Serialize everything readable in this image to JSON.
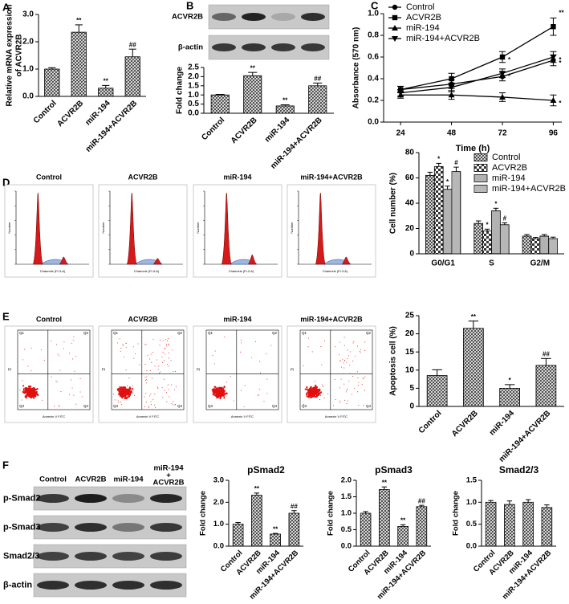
{
  "panel_labels": [
    "A",
    "B",
    "C",
    "D",
    "E",
    "F"
  ],
  "blot_B": {
    "rows": [
      "ACVR2B",
      "β-actin"
    ]
  },
  "cycle_images": {
    "titles": [
      "Control",
      "ACVR2B",
      "miR-194",
      "miR-194+ACVR2B"
    ],
    "x_label": "Channels (FL3-A)",
    "y_label": "Number"
  },
  "apoptosis_images": {
    "titles": [
      "Control",
      "ACVR2B",
      "miR-194",
      "miR-194+ACVR2B"
    ],
    "x_label": "Annexin V FITC",
    "y_label": "PI",
    "quadrants": [
      "Q1",
      "Q2",
      "Q3",
      "Q4"
    ]
  },
  "blot_F": {
    "lanes": [
      "Control",
      "ACVR2B",
      "miR-194",
      [
        "miR-194",
        "+",
        "ACVR2B"
      ]
    ],
    "rows": [
      "p-Smad2",
      "p-Smad3",
      "Smad2/3",
      "β-actin"
    ]
  },
  "chart_data": [
    {
      "type": "bar",
      "y_label": [
        "Relative mRNA expression",
        "of ACVR2B"
      ],
      "categories": [
        "Control",
        "ACVR2B",
        "miR-194",
        "miR-194+ACVR2B"
      ],
      "values": [
        1.0,
        2.35,
        0.3,
        1.45
      ],
      "errors": [
        0.05,
        0.27,
        0.1,
        0.28
      ],
      "annotations": [
        null,
        "**",
        "**",
        "##"
      ],
      "color": "#333333",
      "pattern": "crosshatch",
      "ylim": [
        0,
        3
      ],
      "yticks": [
        {
          "value": 0,
          "label": "0.0"
        },
        {
          "value": 1,
          "label": "1.0"
        },
        {
          "value": 2,
          "label": "2.0"
        },
        {
          "value": 3,
          "label": "3.0"
        }
      ]
    },
    {
      "type": "bar",
      "y_label": "Fold change",
      "categories": [
        "Control",
        "ACVR2B",
        "miR-194",
        "miR-194+ACVR2B"
      ],
      "values": [
        1.0,
        2.05,
        0.4,
        1.5
      ],
      "errors": [
        0.03,
        0.18,
        0.06,
        0.15
      ],
      "annotations": [
        null,
        "**",
        "**",
        "##"
      ],
      "color": "#333333",
      "pattern": "crosshatch",
      "ylim": [
        0,
        2.5
      ],
      "yticks": [
        {
          "value": 0,
          "label": "0.0"
        },
        {
          "value": 0.5,
          "label": "0.5"
        },
        {
          "value": 1,
          "label": "1.0"
        },
        {
          "value": 1.5,
          "label": "1.5"
        },
        {
          "value": 2,
          "label": "2.0"
        },
        {
          "value": 2.5,
          "label": "2.5"
        }
      ]
    },
    {
      "type": "line",
      "x_label": "Time (h)",
      "y_label": "Absorbance (570 nm)",
      "x": [
        24,
        48,
        72,
        96
      ],
      "xlim": [
        16,
        100
      ],
      "xticks": [
        24,
        48,
        72,
        96
      ],
      "ylim": [
        0,
        1
      ],
      "yticks": [
        {
          "value": 0,
          "label": "0.0"
        },
        {
          "value": 0.2,
          "label": "0.2"
        },
        {
          "value": 0.4,
          "label": "0.4"
        },
        {
          "value": 0.6,
          "label": "0.6"
        },
        {
          "value": 0.8,
          "label": "0.8"
        },
        {
          "value": 1,
          "label": "1.0"
        }
      ],
      "legend": "upper left",
      "series": [
        {
          "name": "Control",
          "color": "#000000",
          "marker": "circle",
          "values": [
            0.3,
            0.35,
            0.42,
            0.57
          ],
          "errors": [
            0.03,
            0.04,
            0.04,
            0.05
          ],
          "annotations": [
            null,
            null,
            null,
            "*"
          ]
        },
        {
          "name": "ACVR2B",
          "color": "#000000",
          "marker": "square",
          "values": [
            0.3,
            0.4,
            0.6,
            0.88
          ],
          "errors": [
            0.03,
            0.05,
            0.05,
            0.08
          ],
          "annotations": [
            null,
            null,
            "*",
            "**"
          ]
        },
        {
          "name": "miR-194",
          "color": "#000000",
          "marker": "triangle-up",
          "values": [
            0.25,
            0.25,
            0.23,
            0.2
          ],
          "errors": [
            0.03,
            0.04,
            0.04,
            0.05
          ],
          "annotations": [
            null,
            null,
            null,
            "*"
          ]
        },
        {
          "name": "miR-194+ACVR2B",
          "color": "#000000",
          "marker": "triangle-down",
          "values": [
            0.27,
            0.32,
            0.45,
            0.6
          ],
          "errors": [
            0.03,
            0.04,
            0.04,
            0.05
          ],
          "annotations": [
            null,
            null,
            "*",
            "*"
          ]
        }
      ]
    },
    {
      "type": "grouped_bar",
      "y_label": "Cell number (%)",
      "categories": [
        "G0/G1",
        "S",
        "G2/M"
      ],
      "legend": "upper right",
      "ylim": [
        0,
        80
      ],
      "yticks": [
        0,
        20,
        40,
        60,
        80
      ],
      "series": [
        {
          "name": "Control",
          "color": "#333333",
          "pattern": "crosshatch",
          "values": [
            62,
            24,
            14
          ],
          "errors": [
            2.5,
            2,
            1.2
          ],
          "annotations": [
            null,
            null,
            null
          ]
        },
        {
          "name": "ACVR2B",
          "color": "#333333",
          "pattern": "checker",
          "values": [
            69,
            18,
            12
          ],
          "errors": [
            2.5,
            1.5,
            1
          ],
          "annotations": [
            "*",
            "*",
            null
          ]
        },
        {
          "name": "miR-194",
          "color": "#333333",
          "pattern": "horizontal",
          "values": [
            51,
            34,
            14
          ],
          "errors": [
            2.5,
            2,
            1.2
          ],
          "annotations": [
            "*",
            "*",
            null
          ]
        },
        {
          "name": "miR-194+ACVR2B",
          "color": "#333333",
          "pattern": "vertical",
          "values": [
            65,
            23,
            12
          ],
          "errors": [
            3.5,
            1.5,
            1.2
          ],
          "annotations": [
            "#",
            "#",
            null
          ]
        }
      ]
    },
    {
      "type": "bar",
      "y_label": "Apoptosis cell (%)",
      "categories": [
        "Control",
        "ACVR2B",
        "miR-194",
        "miR-194+ACVR2B"
      ],
      "values": [
        8.5,
        21.5,
        5.0,
        11.3
      ],
      "errors": [
        1.6,
        2.0,
        1.0,
        1.9
      ],
      "annotations": [
        null,
        "**",
        "*",
        "##"
      ],
      "color": "#333333",
      "pattern": "crosshatch",
      "ylim": [
        0,
        25
      ],
      "yticks": [
        0,
        5,
        10,
        15,
        20,
        25
      ]
    },
    {
      "type": "bar",
      "title": "pSmad2",
      "y_label": "Fold change",
      "categories": [
        "Control",
        "ACVR2B",
        "miR-194",
        "miR-194+ACVR2B"
      ],
      "values": [
        1.0,
        2.32,
        0.55,
        1.5
      ],
      "errors": [
        0.08,
        0.1,
        0.03,
        0.12
      ],
      "annotations": [
        null,
        "**",
        "**",
        "##"
      ],
      "color": "#333333",
      "pattern": "crosshatch",
      "ylim": [
        0,
        3
      ],
      "yticks": [
        {
          "value": 0,
          "label": "0.0"
        },
        {
          "value": 1,
          "label": "1.0"
        },
        {
          "value": 2,
          "label": "2.0"
        },
        {
          "value": 3,
          "label": "3.0"
        }
      ]
    },
    {
      "type": "bar",
      "title": "pSmad3",
      "y_label": "Fold change",
      "categories": [
        "Control",
        "ACVR2B",
        "miR-194",
        "miR-194+ACVR2B"
      ],
      "values": [
        1.0,
        1.72,
        0.6,
        1.2
      ],
      "errors": [
        0.05,
        0.08,
        0.05,
        0.04
      ],
      "annotations": [
        null,
        "**",
        "**",
        "##"
      ],
      "color": "#333333",
      "pattern": "crosshatch",
      "ylim": [
        0,
        2
      ],
      "yticks": [
        {
          "value": 0,
          "label": "0.0"
        },
        {
          "value": 0.5,
          "label": "0.5"
        },
        {
          "value": 1,
          "label": "1.0"
        },
        {
          "value": 1.5,
          "label": "1.5"
        },
        {
          "value": 2,
          "label": "2.0"
        }
      ]
    },
    {
      "type": "bar",
      "title": "Smad2/3",
      "y_label": "Fold change",
      "categories": [
        "Control",
        "ACVR2B",
        "miR-194",
        "miR-194+ACVR2B"
      ],
      "values": [
        1.0,
        0.95,
        1.0,
        0.88
      ],
      "errors": [
        0.04,
        0.08,
        0.06,
        0.06
      ],
      "color": "#333333",
      "pattern": "crosshatch",
      "ylim": [
        0,
        1.5
      ],
      "yticks": [
        {
          "value": 0,
          "label": "0.0"
        },
        {
          "value": 0.5,
          "label": "0.5"
        },
        {
          "value": 1,
          "label": "1.0"
        },
        {
          "value": 1.5,
          "label": "1.5"
        }
      ]
    }
  ]
}
